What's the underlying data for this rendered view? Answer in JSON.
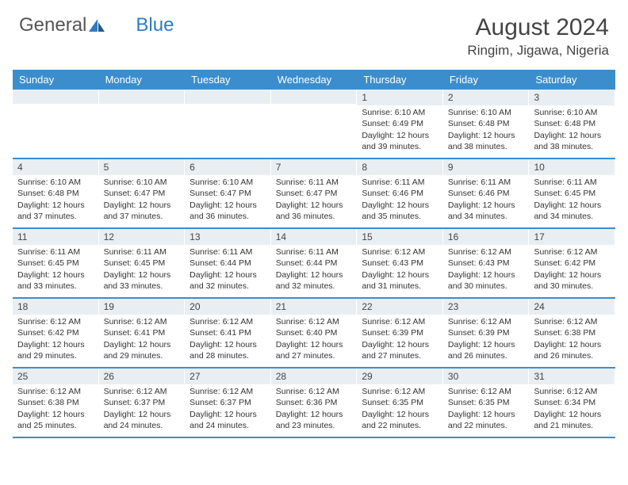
{
  "brand": {
    "word1": "General",
    "word2": "Blue"
  },
  "title": "August 2024",
  "location": "Ringim, Jigawa, Nigeria",
  "colors": {
    "header_bg": "#3c8dcc",
    "header_text": "#ffffff",
    "band_bg": "#e9eef3",
    "text": "#333333",
    "rule": "#3c8dcc",
    "page_bg": "#ffffff"
  },
  "fonts": {
    "title_size": 30,
    "location_size": 17,
    "dow_size": 13,
    "cell_size": 10.5,
    "daynum_size": 12
  },
  "days_of_week": [
    "Sunday",
    "Monday",
    "Tuesday",
    "Wednesday",
    "Thursday",
    "Friday",
    "Saturday"
  ],
  "weeks": [
    [
      {
        "blank": true
      },
      {
        "blank": true
      },
      {
        "blank": true
      },
      {
        "blank": true
      },
      {
        "n": "1",
        "sr": "Sunrise: 6:10 AM",
        "ss": "Sunset: 6:49 PM",
        "d1": "Daylight: 12 hours",
        "d2": "and 39 minutes."
      },
      {
        "n": "2",
        "sr": "Sunrise: 6:10 AM",
        "ss": "Sunset: 6:48 PM",
        "d1": "Daylight: 12 hours",
        "d2": "and 38 minutes."
      },
      {
        "n": "3",
        "sr": "Sunrise: 6:10 AM",
        "ss": "Sunset: 6:48 PM",
        "d1": "Daylight: 12 hours",
        "d2": "and 38 minutes."
      }
    ],
    [
      {
        "n": "4",
        "sr": "Sunrise: 6:10 AM",
        "ss": "Sunset: 6:48 PM",
        "d1": "Daylight: 12 hours",
        "d2": "and 37 minutes."
      },
      {
        "n": "5",
        "sr": "Sunrise: 6:10 AM",
        "ss": "Sunset: 6:47 PM",
        "d1": "Daylight: 12 hours",
        "d2": "and 37 minutes."
      },
      {
        "n": "6",
        "sr": "Sunrise: 6:10 AM",
        "ss": "Sunset: 6:47 PM",
        "d1": "Daylight: 12 hours",
        "d2": "and 36 minutes."
      },
      {
        "n": "7",
        "sr": "Sunrise: 6:11 AM",
        "ss": "Sunset: 6:47 PM",
        "d1": "Daylight: 12 hours",
        "d2": "and 36 minutes."
      },
      {
        "n": "8",
        "sr": "Sunrise: 6:11 AM",
        "ss": "Sunset: 6:46 PM",
        "d1": "Daylight: 12 hours",
        "d2": "and 35 minutes."
      },
      {
        "n": "9",
        "sr": "Sunrise: 6:11 AM",
        "ss": "Sunset: 6:46 PM",
        "d1": "Daylight: 12 hours",
        "d2": "and 34 minutes."
      },
      {
        "n": "10",
        "sr": "Sunrise: 6:11 AM",
        "ss": "Sunset: 6:45 PM",
        "d1": "Daylight: 12 hours",
        "d2": "and 34 minutes."
      }
    ],
    [
      {
        "n": "11",
        "sr": "Sunrise: 6:11 AM",
        "ss": "Sunset: 6:45 PM",
        "d1": "Daylight: 12 hours",
        "d2": "and 33 minutes."
      },
      {
        "n": "12",
        "sr": "Sunrise: 6:11 AM",
        "ss": "Sunset: 6:45 PM",
        "d1": "Daylight: 12 hours",
        "d2": "and 33 minutes."
      },
      {
        "n": "13",
        "sr": "Sunrise: 6:11 AM",
        "ss": "Sunset: 6:44 PM",
        "d1": "Daylight: 12 hours",
        "d2": "and 32 minutes."
      },
      {
        "n": "14",
        "sr": "Sunrise: 6:11 AM",
        "ss": "Sunset: 6:44 PM",
        "d1": "Daylight: 12 hours",
        "d2": "and 32 minutes."
      },
      {
        "n": "15",
        "sr": "Sunrise: 6:12 AM",
        "ss": "Sunset: 6:43 PM",
        "d1": "Daylight: 12 hours",
        "d2": "and 31 minutes."
      },
      {
        "n": "16",
        "sr": "Sunrise: 6:12 AM",
        "ss": "Sunset: 6:43 PM",
        "d1": "Daylight: 12 hours",
        "d2": "and 30 minutes."
      },
      {
        "n": "17",
        "sr": "Sunrise: 6:12 AM",
        "ss": "Sunset: 6:42 PM",
        "d1": "Daylight: 12 hours",
        "d2": "and 30 minutes."
      }
    ],
    [
      {
        "n": "18",
        "sr": "Sunrise: 6:12 AM",
        "ss": "Sunset: 6:42 PM",
        "d1": "Daylight: 12 hours",
        "d2": "and 29 minutes."
      },
      {
        "n": "19",
        "sr": "Sunrise: 6:12 AM",
        "ss": "Sunset: 6:41 PM",
        "d1": "Daylight: 12 hours",
        "d2": "and 29 minutes."
      },
      {
        "n": "20",
        "sr": "Sunrise: 6:12 AM",
        "ss": "Sunset: 6:41 PM",
        "d1": "Daylight: 12 hours",
        "d2": "and 28 minutes."
      },
      {
        "n": "21",
        "sr": "Sunrise: 6:12 AM",
        "ss": "Sunset: 6:40 PM",
        "d1": "Daylight: 12 hours",
        "d2": "and 27 minutes."
      },
      {
        "n": "22",
        "sr": "Sunrise: 6:12 AM",
        "ss": "Sunset: 6:39 PM",
        "d1": "Daylight: 12 hours",
        "d2": "and 27 minutes."
      },
      {
        "n": "23",
        "sr": "Sunrise: 6:12 AM",
        "ss": "Sunset: 6:39 PM",
        "d1": "Daylight: 12 hours",
        "d2": "and 26 minutes."
      },
      {
        "n": "24",
        "sr": "Sunrise: 6:12 AM",
        "ss": "Sunset: 6:38 PM",
        "d1": "Daylight: 12 hours",
        "d2": "and 26 minutes."
      }
    ],
    [
      {
        "n": "25",
        "sr": "Sunrise: 6:12 AM",
        "ss": "Sunset: 6:38 PM",
        "d1": "Daylight: 12 hours",
        "d2": "and 25 minutes."
      },
      {
        "n": "26",
        "sr": "Sunrise: 6:12 AM",
        "ss": "Sunset: 6:37 PM",
        "d1": "Daylight: 12 hours",
        "d2": "and 24 minutes."
      },
      {
        "n": "27",
        "sr": "Sunrise: 6:12 AM",
        "ss": "Sunset: 6:37 PM",
        "d1": "Daylight: 12 hours",
        "d2": "and 24 minutes."
      },
      {
        "n": "28",
        "sr": "Sunrise: 6:12 AM",
        "ss": "Sunset: 6:36 PM",
        "d1": "Daylight: 12 hours",
        "d2": "and 23 minutes."
      },
      {
        "n": "29",
        "sr": "Sunrise: 6:12 AM",
        "ss": "Sunset: 6:35 PM",
        "d1": "Daylight: 12 hours",
        "d2": "and 22 minutes."
      },
      {
        "n": "30",
        "sr": "Sunrise: 6:12 AM",
        "ss": "Sunset: 6:35 PM",
        "d1": "Daylight: 12 hours",
        "d2": "and 22 minutes."
      },
      {
        "n": "31",
        "sr": "Sunrise: 6:12 AM",
        "ss": "Sunset: 6:34 PM",
        "d1": "Daylight: 12 hours",
        "d2": "and 21 minutes."
      }
    ]
  ]
}
